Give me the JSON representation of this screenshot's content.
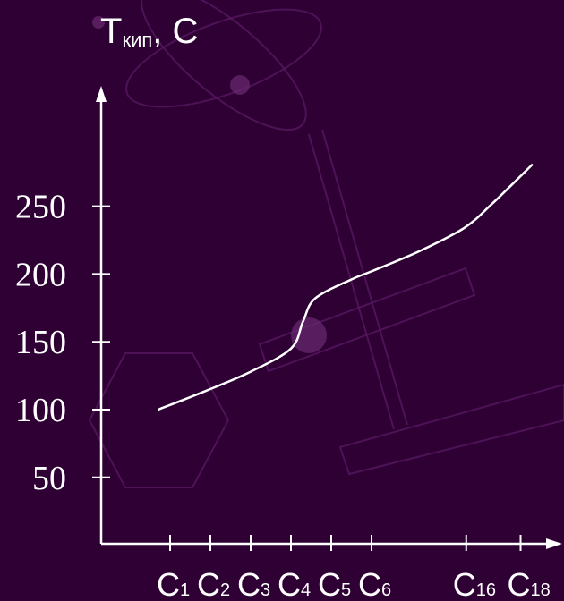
{
  "colors": {
    "background": "#2e0034",
    "foreground": "#ffffff",
    "decoration": "#5a1a63"
  },
  "chart_data": {
    "type": "line",
    "title": "",
    "ylabel_main": "T",
    "ylabel_sub": "кип",
    "ylabel_unit": ", С",
    "xlabel": "",
    "ylim": [
      25,
      330
    ],
    "yticks": [
      50,
      100,
      150,
      200,
      250
    ],
    "categories": [
      {
        "main": "C",
        "sub": "1",
        "pos": 1
      },
      {
        "main": "C",
        "sub": "2",
        "pos": 2
      },
      {
        "main": "C",
        "sub": "3",
        "pos": 3
      },
      {
        "main": "C",
        "sub": "4",
        "pos": 4
      },
      {
        "main": "C",
        "sub": "5",
        "pos": 5
      },
      {
        "main": "C",
        "sub": "6",
        "pos": 6
      },
      {
        "main": "C",
        "sub": "16",
        "pos": 8.35
      },
      {
        "main": "C",
        "sub": "18",
        "pos": 9.7
      }
    ],
    "series": [
      {
        "x": [
          0.7,
          1.9,
          3.0,
          4.0,
          4.3,
          4.6,
          5.5,
          6.0,
          7.2,
          8.3,
          9.0,
          10.0
        ],
        "y": [
          100,
          114,
          128,
          145,
          165,
          182,
          196,
          202,
          217,
          234,
          252,
          281
        ]
      }
    ],
    "grid": false,
    "legend": "none"
  }
}
